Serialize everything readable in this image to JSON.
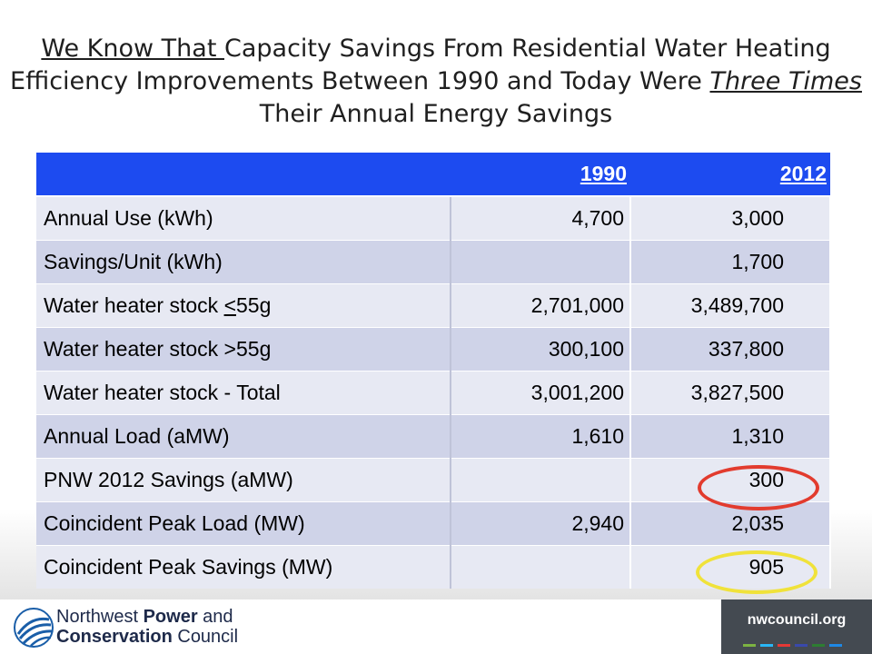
{
  "title": {
    "part1": "We Know That ",
    "part2": "Capacity Savings From Residential Water Heating Efficiency Improvements Between 1990 and Today Were ",
    "part3": "Three Times ",
    "part4": "Their Annual Energy Savings"
  },
  "table": {
    "headers": [
      "",
      "1990",
      "2012"
    ],
    "rows": [
      [
        "Annual Use (kWh)",
        "4,700",
        "3,000"
      ],
      [
        "Savings/Unit (kWh)",
        "",
        "1,700"
      ],
      [
        "Water heater stock <55g",
        "2,701,000",
        "3,489,700"
      ],
      [
        "Water heater stock >55g",
        "300,100",
        "337,800"
      ],
      [
        "Water heater stock - Total",
        "3,001,200",
        "3,827,500"
      ],
      [
        "Annual Load (aMW)",
        "1,610",
        "1,310"
      ],
      [
        "PNW 2012 Savings (aMW)",
        "",
        "300"
      ],
      [
        "Coincident Peak Load (MW)",
        "2,940",
        "2,035"
      ],
      [
        "Coincident Peak Savings (MW)",
        "",
        "905"
      ]
    ]
  },
  "footer": {
    "org_line1_a": "Northwest ",
    "org_line1_b": "Power",
    "org_line1_c": " and",
    "org_line2_a": "Conservation",
    "org_line2_b": " Council",
    "site": "nwcouncil.org",
    "stripe_colors": [
      "#7cb342",
      "#29b6f6",
      "#e53935",
      "#3949ab",
      "#2e7d32",
      "#1e88e5"
    ]
  },
  "colors": {
    "header_bg": "#1d4bf0",
    "row_light": "#e7e9f3",
    "row_dark": "#cfd3e8",
    "highlight_red": "#e23b2e",
    "highlight_yellow": "#f0e23a"
  }
}
